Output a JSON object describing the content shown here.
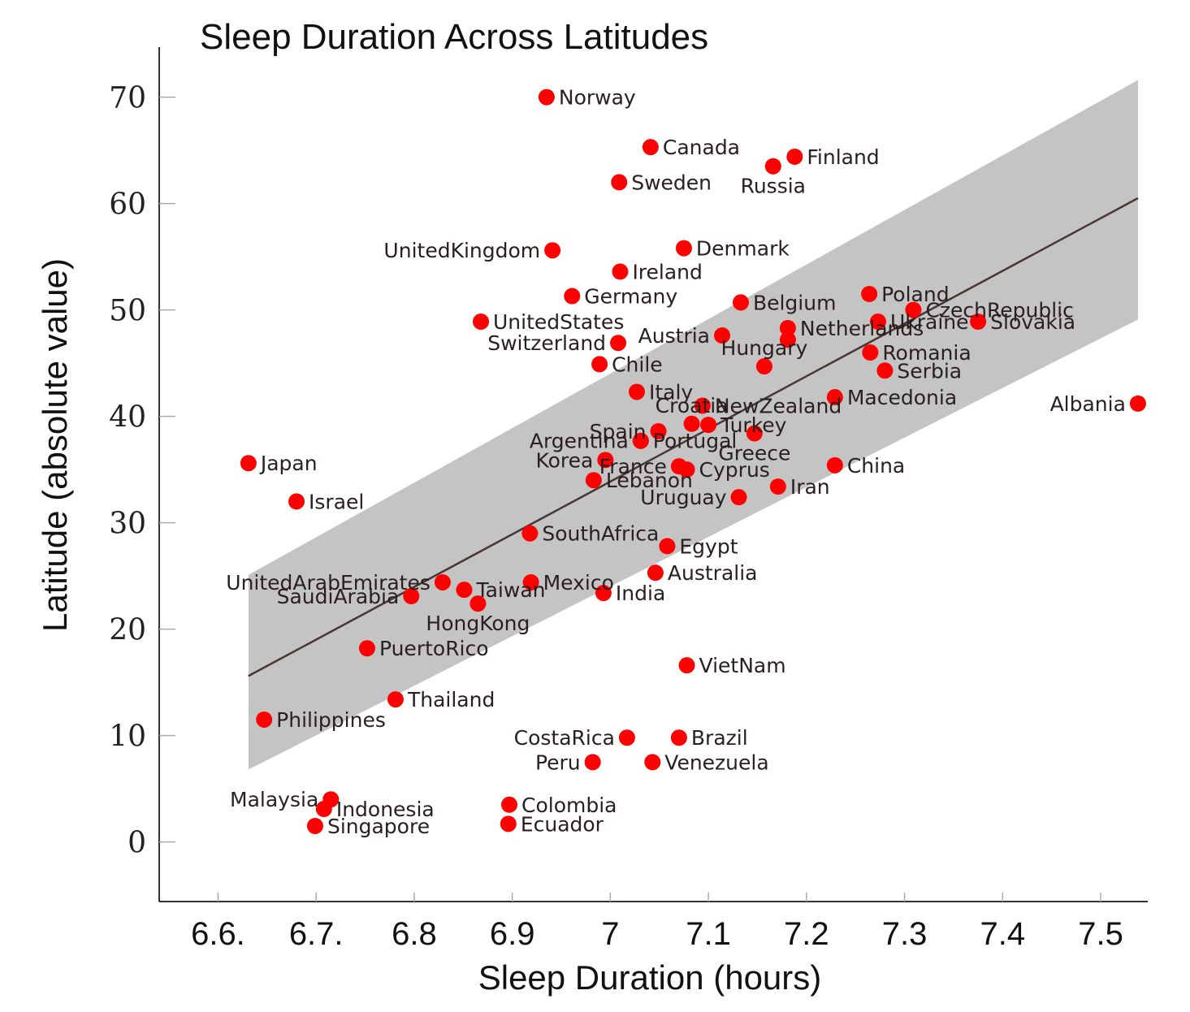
{
  "chart_data": {
    "type": "scatter",
    "title": "Sleep Duration Across Latitudes",
    "xlabel": "Sleep Duration (hours)",
    "ylabel": "Latitude (absolute value)",
    "xlim": [
      6.54,
      7.548
    ],
    "ylim": [
      -5.6,
      74.7
    ],
    "xticks": [
      6.6,
      6.7,
      6.8,
      6.9,
      7.0,
      7.1,
      7.2,
      7.3,
      7.4,
      7.5
    ],
    "xtick_labels": [
      "6.6.",
      "6.7.",
      "6.8",
      "6.9",
      "7",
      "7.1",
      "7.2",
      "7.3",
      "7.4",
      "7.5"
    ],
    "yticks": [
      0,
      10,
      20,
      30,
      40,
      50,
      60,
      70
    ],
    "ytick_labels": [
      "0",
      "10",
      "20",
      "30",
      "40",
      "50",
      "60",
      "70"
    ],
    "grid": false,
    "point_color": "#ff0000",
    "regression": {
      "color": "#4a3535",
      "x": [
        6.631,
        7.538
      ],
      "y": [
        15.6,
        60.5
      ],
      "band_color": "#c4c4c4",
      "band_upper": [
        25.1,
        71.6
      ],
      "band_lower": [
        6.8,
        49.1
      ]
    },
    "points": [
      {
        "label": "Norway",
        "x": 6.935,
        "y": 70.0,
        "side": "right"
      },
      {
        "label": "Canada",
        "x": 7.041,
        "y": 65.3,
        "side": "right"
      },
      {
        "label": "Sweden",
        "x": 7.009,
        "y": 62.0,
        "side": "right"
      },
      {
        "label": "Russia",
        "x": 7.166,
        "y": 63.5,
        "side": "below"
      },
      {
        "label": "Finland",
        "x": 7.188,
        "y": 64.4,
        "side": "right"
      },
      {
        "label": "UnitedKingdom",
        "x": 6.941,
        "y": 55.6,
        "side": "left"
      },
      {
        "label": "Denmark",
        "x": 7.075,
        "y": 55.8,
        "side": "right"
      },
      {
        "label": "Ireland",
        "x": 7.01,
        "y": 53.6,
        "side": "right"
      },
      {
        "label": "Germany",
        "x": 6.961,
        "y": 51.3,
        "side": "right"
      },
      {
        "label": "Belgium",
        "x": 7.133,
        "y": 50.7,
        "side": "right"
      },
      {
        "label": "UnitedStates",
        "x": 6.868,
        "y": 48.9,
        "side": "right"
      },
      {
        "label": "Switzerland",
        "x": 7.008,
        "y": 46.9,
        "side": "left"
      },
      {
        "label": "Austria",
        "x": 7.114,
        "y": 47.6,
        "side": "left"
      },
      {
        "label": "Netherlands",
        "x": 7.181,
        "y": 48.3,
        "side": "right"
      },
      {
        "label": "",
        "x": 7.181,
        "y": 47.2,
        "side": "right"
      },
      {
        "label": "Chile",
        "x": 6.989,
        "y": 44.9,
        "side": "right"
      },
      {
        "label": "Hungary",
        "x": 7.157,
        "y": 44.7,
        "side": "above"
      },
      {
        "label": "Poland",
        "x": 7.264,
        "y": 51.5,
        "side": "right"
      },
      {
        "label": "CzechRepublic",
        "x": 7.309,
        "y": 50.0,
        "side": "right"
      },
      {
        "label": "Ukraine",
        "x": 7.273,
        "y": 48.9,
        "side": "right"
      },
      {
        "label": "Slovakia",
        "x": 7.375,
        "y": 48.9,
        "side": "right"
      },
      {
        "label": "Romania",
        "x": 7.265,
        "y": 46.0,
        "side": "right"
      },
      {
        "label": "Serbia",
        "x": 7.28,
        "y": 44.3,
        "side": "right"
      },
      {
        "label": "Macedonia",
        "x": 7.229,
        "y": 41.8,
        "side": "right"
      },
      {
        "label": "Albania",
        "x": 7.538,
        "y": 41.2,
        "side": "left"
      },
      {
        "label": "Italy",
        "x": 7.027,
        "y": 42.3,
        "side": "right"
      },
      {
        "label": "NewZealand",
        "x": 7.094,
        "y": 41.0,
        "side": "right"
      },
      {
        "label": "Croatia",
        "x": 7.083,
        "y": 39.3,
        "side": "above"
      },
      {
        "label": "Turkey",
        "x": 7.1,
        "y": 39.2,
        "side": "right"
      },
      {
        "label": "Greece",
        "x": 7.147,
        "y": 38.4,
        "side": "below"
      },
      {
        "label": "Spain",
        "x": 7.049,
        "y": 38.6,
        "side": "left"
      },
      {
        "label": "Argentina",
        "x": 7.031,
        "y": 37.7,
        "side": "left"
      },
      {
        "label": "Portugal",
        "x": 7.031,
        "y": 37.7,
        "side": "right"
      },
      {
        "label": "Korea",
        "x": 6.995,
        "y": 35.9,
        "side": "left"
      },
      {
        "label": "France",
        "x": 7.07,
        "y": 35.3,
        "side": "left"
      },
      {
        "label": "Cyprus",
        "x": 7.078,
        "y": 35.0,
        "side": "right"
      },
      {
        "label": "Lebanon",
        "x": 6.983,
        "y": 34.0,
        "side": "right"
      },
      {
        "label": "Uruguay",
        "x": 7.131,
        "y": 32.4,
        "side": "left"
      },
      {
        "label": "Iran",
        "x": 7.171,
        "y": 33.4,
        "side": "right"
      },
      {
        "label": "China",
        "x": 7.229,
        "y": 35.4,
        "side": "right"
      },
      {
        "label": "Japan",
        "x": 6.631,
        "y": 35.6,
        "side": "right"
      },
      {
        "label": "Israel",
        "x": 6.68,
        "y": 32.0,
        "side": "right"
      },
      {
        "label": "SouthAfrica",
        "x": 6.918,
        "y": 29.0,
        "side": "right"
      },
      {
        "label": "Egypt",
        "x": 7.058,
        "y": 27.8,
        "side": "right"
      },
      {
        "label": "Australia",
        "x": 7.046,
        "y": 25.3,
        "side": "right"
      },
      {
        "label": "Mexico",
        "x": 6.919,
        "y": 24.4,
        "side": "right"
      },
      {
        "label": "India",
        "x": 6.993,
        "y": 23.4,
        "side": "right"
      },
      {
        "label": "UnitedArabEmirates",
        "x": 6.829,
        "y": 24.4,
        "side": "left"
      },
      {
        "label": "SaudiArabia",
        "x": 6.797,
        "y": 23.1,
        "side": "left"
      },
      {
        "label": "Taiwan",
        "x": 6.851,
        "y": 23.7,
        "side": "right"
      },
      {
        "label": "HongKong",
        "x": 6.865,
        "y": 22.4,
        "side": "below"
      },
      {
        "label": "PuertoRico",
        "x": 6.752,
        "y": 18.2,
        "side": "right"
      },
      {
        "label": "VietNam",
        "x": 7.078,
        "y": 16.6,
        "side": "right"
      },
      {
        "label": "Thailand",
        "x": 6.781,
        "y": 13.4,
        "side": "right"
      },
      {
        "label": "Philippines",
        "x": 6.647,
        "y": 11.5,
        "side": "right"
      },
      {
        "label": "CostaRica",
        "x": 7.017,
        "y": 9.8,
        "side": "left"
      },
      {
        "label": "Brazil",
        "x": 7.07,
        "y": 9.8,
        "side": "right"
      },
      {
        "label": "Peru",
        "x": 6.982,
        "y": 7.5,
        "side": "left"
      },
      {
        "label": "Venezuela",
        "x": 7.043,
        "y": 7.5,
        "side": "right"
      },
      {
        "label": "Malaysia",
        "x": 6.715,
        "y": 4.0,
        "side": "left"
      },
      {
        "label": "Indonesia",
        "x": 6.708,
        "y": 3.1,
        "side": "right"
      },
      {
        "label": "Singapore",
        "x": 6.699,
        "y": 1.5,
        "side": "right"
      },
      {
        "label": "Colombia",
        "x": 6.897,
        "y": 3.5,
        "side": "right"
      },
      {
        "label": "Ecuador",
        "x": 6.896,
        "y": 1.7,
        "side": "right"
      }
    ]
  }
}
